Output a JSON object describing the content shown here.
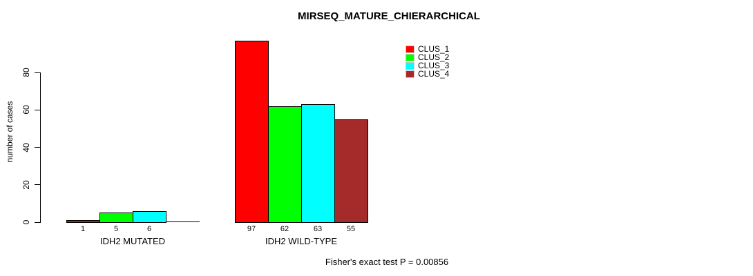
{
  "chart_data": {
    "type": "bar",
    "title": "MIRSEQ_MATURE_CHIERARCHICAL",
    "ylabel": "number of cases",
    "xlabel": "",
    "yticks": [
      0,
      20,
      40,
      60,
      80
    ],
    "ylim": [
      0,
      97
    ],
    "grid": false,
    "categories": [
      "IDH2 MUTATED",
      "IDH2 WILD-TYPE"
    ],
    "series": [
      {
        "name": "CLUS_1",
        "color": "#ff0000",
        "values": [
          1,
          97
        ]
      },
      {
        "name": "CLUS_2",
        "color": "#00ff00",
        "values": [
          5,
          62
        ]
      },
      {
        "name": "CLUS_3",
        "color": "#00ffff",
        "values": [
          6,
          63
        ]
      },
      {
        "name": "CLUS_4",
        "color": "#a52a2a",
        "values": [
          0,
          55
        ]
      }
    ],
    "bar_value_labels": [
      [
        "1",
        "5",
        "6",
        ""
      ],
      [
        "97",
        "62",
        "63",
        "55"
      ]
    ],
    "legend": {
      "position": "top-right",
      "entries": [
        "CLUS_1",
        "CLUS_2",
        "CLUS_3",
        "CLUS_4"
      ]
    },
    "annotation": "Fisher's exact test P = 0.00856"
  }
}
